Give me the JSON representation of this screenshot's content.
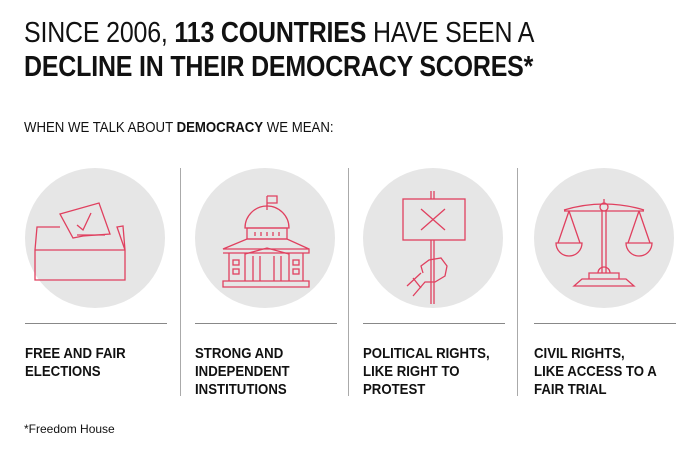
{
  "headline": {
    "part1": "SINCE 2006, ",
    "bold1": "113 COUNTRIES",
    "part2": " HAVE SEEN A",
    "bold2": "DECLINE IN THEIR DEMOCRACY SCORES*"
  },
  "subhead": {
    "part1": "WHEN WE TALK ABOUT ",
    "bold": "DEMOCRACY",
    "part2": " WE MEAN:"
  },
  "items": [
    {
      "icon": "ballot-box-icon",
      "label": "FREE AND FAIR\nELECTIONS"
    },
    {
      "icon": "government-building-icon",
      "label": "STRONG AND\nINDEPENDENT\nINSTITUTIONS"
    },
    {
      "icon": "protest-sign-icon",
      "label": "POLITICAL RIGHTS,\nLIKE RIGHT TO\nPROTEST"
    },
    {
      "icon": "scales-of-justice-icon",
      "label": "CIVIL RIGHTS,\nLIKE ACCESS TO A\nFAIR TRIAL"
    }
  ],
  "footnote": "*Freedom House",
  "colors": {
    "accent": "#e0405f",
    "circle": "#e6e6e6"
  }
}
